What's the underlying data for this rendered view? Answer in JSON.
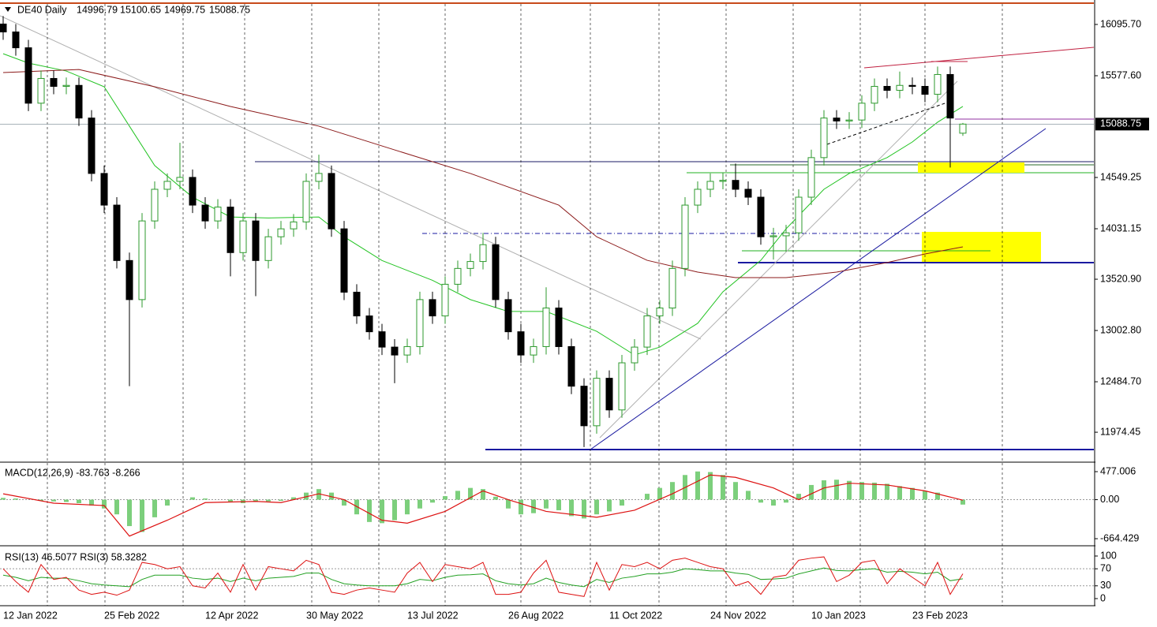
{
  "chart_data": [
    {
      "type": "candlestick",
      "title": "DE40 Daily",
      "ohlc_readout": [
        14996.79,
        15100.65,
        14969.75,
        15088.75
      ],
      "categories": [
        "12 Jan 2022",
        null,
        null,
        null,
        null,
        null,
        null,
        null,
        "25 Feb 2022",
        null,
        null,
        null,
        null,
        null,
        null,
        null,
        "12 Apr 2022",
        null,
        null,
        null,
        null,
        null,
        null,
        null,
        "30 May 2022",
        null,
        null,
        null,
        null,
        null,
        null,
        null,
        "13 Jul 2022",
        null,
        null,
        null,
        null,
        null,
        null,
        null,
        "26 Aug 2022",
        null,
        null,
        null,
        null,
        null,
        null,
        null,
        "11 Oct 2022",
        null,
        null,
        null,
        null,
        null,
        null,
        null,
        "24 Nov 2022",
        null,
        null,
        null,
        null,
        null,
        null,
        null,
        "10 Jan 2023",
        null,
        null,
        null,
        null,
        null,
        null,
        null,
        "23 Feb 2023",
        null,
        null,
        null,
        null
      ],
      "open": [
        16100,
        16020,
        15860,
        15300,
        15550,
        15470,
        15480,
        15150,
        14590,
        14270,
        13710,
        13315,
        14110,
        14430,
        14510,
        14550,
        14270,
        14110,
        14250,
        13790,
        14110,
        13710,
        13950,
        14030,
        14100,
        14510,
        14590,
        14030,
        13390,
        13150,
        12990,
        12835,
        12755,
        12840,
        13315,
        13150,
        13470,
        13630,
        13700,
        13870,
        13315,
        12990,
        12755,
        12840,
        13230,
        12840,
        12440,
        12040,
        12520,
        12200,
        12676,
        12835,
        13150,
        13230,
        13630,
        14270,
        14430,
        14510,
        14520,
        14430,
        14350,
        13950,
        13960,
        13990,
        14350,
        14750,
        15150,
        15120,
        15130,
        15300,
        15470,
        15430,
        15480,
        15470,
        15390,
        15590,
        14996.79
      ],
      "high": [
        16180,
        16100,
        15940,
        15630,
        15630,
        15560,
        15560,
        15230,
        14670,
        14350,
        13790,
        14190,
        14510,
        14590,
        14900,
        14630,
        14350,
        14330,
        14330,
        14190,
        14190,
        14030,
        14110,
        14180,
        14590,
        14780,
        14670,
        14110,
        13470,
        13230,
        13070,
        12915,
        12920,
        13395,
        13395,
        13550,
        13710,
        13780,
        13990,
        13950,
        13395,
        13070,
        12920,
        13440,
        13310,
        12920,
        12520,
        12600,
        12600,
        12756,
        12915,
        13230,
        13310,
        13710,
        14350,
        14510,
        14590,
        14600,
        14690,
        14510,
        14430,
        14040,
        14070,
        14430,
        14830,
        15230,
        15230,
        15210,
        15380,
        15550,
        15550,
        15620,
        15560,
        15550,
        15670,
        15670,
        15100.65
      ],
      "low": [
        15940,
        15780,
        15220,
        15220,
        15390,
        15390,
        15070,
        14510,
        14190,
        13630,
        12440,
        13235,
        14030,
        14350,
        14430,
        14190,
        14030,
        14030,
        13550,
        13710,
        13350,
        13630,
        13870,
        13950,
        14020,
        14430,
        13950,
        13310,
        13070,
        12910,
        12755,
        12470,
        12675,
        12760,
        13070,
        13070,
        13390,
        13550,
        13620,
        13235,
        12910,
        12675,
        12675,
        12760,
        12760,
        12360,
        11824,
        11960,
        12120,
        12120,
        12596,
        12755,
        13070,
        13150,
        13550,
        14190,
        14350,
        14430,
        14350,
        14270,
        13870,
        13720,
        13800,
        13910,
        14270,
        14670,
        15040,
        15040,
        15050,
        15220,
        15350,
        15350,
        15390,
        15310,
        15310,
        14650,
        14969.75
      ],
      "close": [
        16020,
        15860,
        15300,
        15550,
        15470,
        15480,
        15150,
        14590,
        14270,
        13710,
        13315,
        14110,
        14430,
        14510,
        14550,
        14270,
        14110,
        14250,
        13790,
        14110,
        13710,
        13950,
        14030,
        14100,
        14510,
        14590,
        14030,
        13390,
        13150,
        12990,
        12835,
        12755,
        12840,
        13315,
        13150,
        13470,
        13630,
        13700,
        13870,
        13315,
        12990,
        12755,
        12840,
        13230,
        12840,
        12440,
        12040,
        12520,
        12200,
        12676,
        12835,
        13150,
        13230,
        13630,
        14270,
        14430,
        14510,
        14520,
        14430,
        14350,
        13950,
        13960,
        13990,
        14350,
        14750,
        15150,
        15120,
        15130,
        15300,
        15470,
        15430,
        15480,
        15470,
        15390,
        15590,
        15150,
        15088.75
      ],
      "up_color": "#2e9a2e",
      "down_color": "#000000",
      "lines": [
        {
          "color": "#22c322",
          "x": [
            0,
            2,
            5,
            8,
            10,
            12,
            15,
            18,
            21,
            25,
            27,
            30,
            34,
            37,
            40,
            43,
            47,
            50,
            52,
            55,
            57,
            60,
            62,
            65,
            67,
            70,
            72,
            74,
            76
          ],
          "values": [
            15800,
            15705,
            15625,
            15466,
            15068,
            14670,
            14350,
            14150,
            14140,
            14150,
            13950,
            13710,
            13510,
            13315,
            13195,
            13195,
            12995,
            12755,
            12835,
            13075,
            13394,
            13712,
            14030,
            14430,
            14590,
            14750,
            14908,
            15108,
            15267
          ]
        },
        {
          "color": "#8b1a1a",
          "x": [
            0,
            6,
            12,
            18,
            25,
            31,
            37,
            44,
            47,
            51,
            55,
            58,
            62,
            66,
            70,
            73,
            76
          ],
          "values": [
            15610,
            15640,
            15466,
            15267,
            15068,
            14828,
            14590,
            14270,
            13950,
            13712,
            13593,
            13537,
            13537,
            13593,
            13690,
            13776,
            13848
          ]
        }
      ],
      "current_price": 15088.75,
      "ylim": [
        11680,
        16311
      ],
      "yticks": [
        {
          "value": 16095.7,
          "label": "16095.70"
        },
        {
          "value": 15577.6,
          "label": "15577.60"
        },
        14549.25,
        14031.15,
        {
          "value": 13520.9,
          "label": "13520.90"
        },
        {
          "value": 13002.8,
          "label": "13002.80"
        },
        {
          "value": 12484.7,
          "label": "12484.70"
        },
        11974.45
      ]
    },
    {
      "type": "macd",
      "label": "MACD(12,26,9) -83.763 -8.266",
      "values": [
        30,
        20,
        0,
        -20,
        -30,
        -40,
        -60,
        -100,
        -150,
        -250,
        -450,
        -550,
        -300,
        -100,
        0,
        40,
        20,
        0,
        -40,
        -60,
        -40,
        -30,
        -20,
        40,
        120,
        180,
        120,
        -100,
        -250,
        -380,
        -400,
        -350,
        -250,
        -150,
        -50,
        60,
        150,
        200,
        180,
        50,
        -150,
        -250,
        -230,
        -150,
        -180,
        -280,
        -320,
        -250,
        -200,
        -100,
        0,
        100,
        200,
        300,
        420,
        480,
        470,
        420,
        300,
        150,
        -50,
        -100,
        -50,
        100,
        250,
        330,
        340,
        320,
        300,
        290,
        270,
        230,
        200,
        150,
        120,
        0,
        -83.763
      ],
      "color": "#7ccf7c",
      "signal": {
        "color": "#dd1111",
        "x": [
          0,
          4,
          8,
          10,
          13,
          16,
          20,
          22,
          25,
          27,
          30,
          32,
          35,
          38,
          40,
          43,
          47,
          50,
          53,
          56,
          58,
          61,
          63,
          65,
          67,
          70,
          73,
          76
        ],
        "values": [
          100,
          -60,
          -100,
          -620,
          -350,
          -50,
          -30,
          -50,
          100,
          0,
          -350,
          -400,
          -200,
          150,
          0,
          -200,
          -300,
          -180,
          100,
          420,
          380,
          200,
          0,
          200,
          280,
          250,
          150,
          -8.266
        ]
      },
      "ylim": [
        -758,
        625
      ],
      "yticks": [
        477.006,
        {
          "value": 0,
          "label": "0.00"
        },
        -664.429
      ]
    },
    {
      "type": "rsi",
      "label": "RSI(13) 46.5077  RSI(3) 58.3282",
      "series": [
        {
          "color": "#22a022",
          "values": [
            55,
            50,
            42,
            50,
            48,
            48,
            42,
            35,
            32,
            30,
            28,
            45,
            55,
            55,
            55,
            48,
            45,
            48,
            40,
            48,
            42,
            48,
            50,
            52,
            60,
            60,
            45,
            35,
            32,
            30,
            30,
            30,
            35,
            45,
            42,
            50,
            55,
            56,
            58,
            42,
            35,
            32,
            35,
            48,
            38,
            32,
            28,
            45,
            38,
            48,
            52,
            58,
            58,
            62,
            70,
            68,
            65,
            65,
            60,
            57,
            45,
            46,
            48,
            58,
            65,
            72,
            66,
            65,
            68,
            70,
            62,
            64,
            62,
            58,
            62,
            42,
            46.5077
          ]
        },
        {
          "color": "#dd1111",
          "values": [
            70,
            40,
            15,
            80,
            45,
            50,
            20,
            10,
            15,
            8,
            20,
            85,
            80,
            70,
            75,
            30,
            25,
            60,
            15,
            80,
            20,
            75,
            70,
            65,
            90,
            80,
            15,
            10,
            20,
            25,
            20,
            15,
            60,
            85,
            40,
            80,
            75,
            70,
            85,
            10,
            10,
            15,
            60,
            90,
            15,
            10,
            5,
            85,
            20,
            80,
            75,
            85,
            70,
            90,
            95,
            85,
            75,
            70,
            30,
            40,
            10,
            50,
            55,
            90,
            95,
            98,
            40,
            55,
            85,
            90,
            35,
            70,
            50,
            30,
            85,
            10,
            58.3282
          ]
        }
      ],
      "levels": [
        70,
        30
      ],
      "ylim": [
        -16.7,
        118.5
      ],
      "yticks": [
        100,
        70,
        30,
        0
      ]
    }
  ]
}
